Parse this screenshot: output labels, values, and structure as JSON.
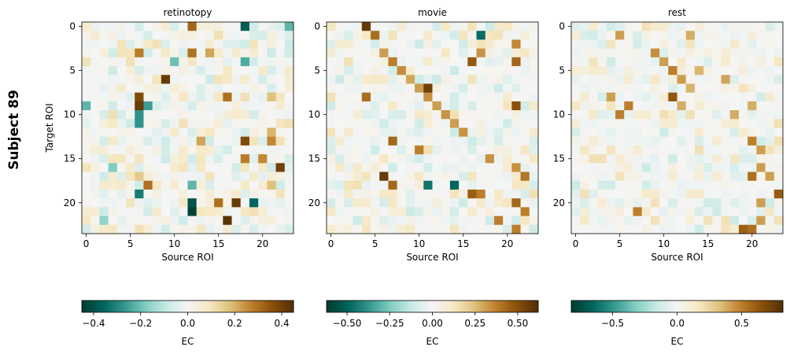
{
  "figure": {
    "row_label": "Subject 89",
    "colormap": [
      "#003c30",
      "#01665e",
      "#35978f",
      "#80cdc1",
      "#c7eae5",
      "#f5f5f5",
      "#f6e8c3",
      "#dfc27d",
      "#bf812d",
      "#8c510a",
      "#543005"
    ]
  },
  "chart_data": [
    {
      "type": "heatmap",
      "title": "retinotopy",
      "xlabel": "Source ROI",
      "ylabel": "Target ROI",
      "n": 24,
      "xticks": [
        0,
        5,
        10,
        15,
        20
      ],
      "yticks": [
        0,
        5,
        10,
        15,
        20
      ],
      "vlim": [
        -0.45,
        0.45
      ],
      "seed": 17,
      "density": 0.55,
      "strong": [
        [
          0,
          12,
          0.32
        ],
        [
          0,
          18,
          -0.38
        ],
        [
          0,
          23,
          -0.22
        ],
        [
          3,
          6,
          0.28
        ],
        [
          3,
          12,
          0.3
        ],
        [
          3,
          14,
          0.22
        ],
        [
          4,
          10,
          -0.2
        ],
        [
          4,
          18,
          -0.24
        ],
        [
          6,
          9,
          0.42
        ],
        [
          8,
          6,
          0.38
        ],
        [
          8,
          16,
          0.3
        ],
        [
          8,
          21,
          0.18
        ],
        [
          9,
          0,
          -0.22
        ],
        [
          9,
          6,
          0.42
        ],
        [
          9,
          7,
          -0.26
        ],
        [
          10,
          6,
          -0.28
        ],
        [
          11,
          6,
          -0.28
        ],
        [
          12,
          21,
          0.2
        ],
        [
          13,
          13,
          0.22
        ],
        [
          13,
          18,
          0.38
        ],
        [
          13,
          21,
          0.26
        ],
        [
          15,
          18,
          0.28
        ],
        [
          15,
          20,
          0.26
        ],
        [
          16,
          22,
          0.4
        ],
        [
          16,
          3,
          -0.18
        ],
        [
          17,
          6,
          0.16
        ],
        [
          18,
          7,
          0.3
        ],
        [
          18,
          12,
          -0.22
        ],
        [
          18,
          21,
          0.18
        ],
        [
          19,
          6,
          -0.32
        ],
        [
          20,
          12,
          -0.4
        ],
        [
          20,
          15,
          0.3
        ],
        [
          20,
          17,
          0.42
        ],
        [
          20,
          19,
          -0.36
        ],
        [
          21,
          12,
          -0.44
        ],
        [
          22,
          16,
          0.44
        ],
        [
          22,
          2,
          -0.16
        ]
      ],
      "cbar_ticks": [
        -0.4,
        -0.2,
        0.0,
        0.2,
        0.4
      ],
      "cbar_ticklabels": [
        "−0.4",
        "−0.2",
        "0.0",
        "0.2",
        "0.4"
      ],
      "cbar_label": "EC"
    },
    {
      "type": "heatmap",
      "title": "movie",
      "xlabel": "Source ROI",
      "ylabel": "",
      "n": 24,
      "xticks": [
        0,
        5,
        10,
        15,
        20
      ],
      "yticks": [
        0,
        5,
        10,
        15,
        20
      ],
      "vlim": [
        -0.62,
        0.62
      ],
      "seed": 29,
      "density": 0.5,
      "strong": [
        [
          0,
          4,
          0.58
        ],
        [
          1,
          5,
          0.42
        ],
        [
          1,
          17,
          -0.48
        ],
        [
          2,
          21,
          0.36
        ],
        [
          3,
          6,
          0.32
        ],
        [
          3,
          17,
          0.34
        ],
        [
          4,
          7,
          0.38
        ],
        [
          4,
          16,
          0.48
        ],
        [
          4,
          21,
          0.44
        ],
        [
          5,
          8,
          0.35
        ],
        [
          6,
          9,
          0.3
        ],
        [
          7,
          10,
          0.32
        ],
        [
          8,
          11,
          0.34
        ],
        [
          8,
          4,
          0.42
        ],
        [
          7,
          11,
          0.56
        ],
        [
          9,
          12,
          0.32
        ],
        [
          9,
          21,
          0.5
        ],
        [
          10,
          13,
          0.34
        ],
        [
          11,
          14,
          0.32
        ],
        [
          12,
          15,
          0.34
        ],
        [
          13,
          7,
          0.44
        ],
        [
          14,
          10,
          0.38
        ],
        [
          15,
          18,
          0.34
        ],
        [
          16,
          21,
          0.34
        ],
        [
          17,
          6,
          0.58
        ],
        [
          17,
          22,
          0.4
        ],
        [
          18,
          7,
          0.44
        ],
        [
          18,
          11,
          -0.46
        ],
        [
          18,
          14,
          -0.5
        ],
        [
          19,
          16,
          0.46
        ],
        [
          19,
          17,
          0.38
        ],
        [
          20,
          21,
          0.44
        ],
        [
          21,
          22,
          0.38
        ],
        [
          22,
          19,
          0.38
        ],
        [
          23,
          21,
          0.38
        ]
      ],
      "cbar_ticks": [
        -0.5,
        -0.25,
        0.0,
        0.25,
        0.5
      ],
      "cbar_ticklabels": [
        "−0.50",
        "−0.25",
        "0.00",
        "0.25",
        "0.50"
      ],
      "cbar_label": "EC"
    },
    {
      "type": "heatmap",
      "title": "rest",
      "xlabel": "Source ROI",
      "ylabel": "",
      "n": 24,
      "xticks": [
        0,
        5,
        10,
        15,
        20
      ],
      "yticks": [
        0,
        5,
        10,
        15,
        20
      ],
      "vlim": [
        -0.82,
        0.82
      ],
      "seed": 43,
      "density": 0.45,
      "strong": [
        [
          1,
          5,
          0.42
        ],
        [
          1,
          13,
          0.38
        ],
        [
          3,
          9,
          0.46
        ],
        [
          4,
          10,
          0.42
        ],
        [
          5,
          11,
          0.5
        ],
        [
          5,
          14,
          0.36
        ],
        [
          6,
          12,
          0.42
        ],
        [
          6,
          17,
          0.4
        ],
        [
          7,
          13,
          0.36
        ],
        [
          8,
          4,
          0.42
        ],
        [
          8,
          11,
          0.64
        ],
        [
          9,
          6,
          0.5
        ],
        [
          9,
          12,
          0.38
        ],
        [
          9,
          20,
          0.38
        ],
        [
          10,
          5,
          0.5
        ],
        [
          10,
          18,
          0.38
        ],
        [
          13,
          20,
          0.5
        ],
        [
          14,
          21,
          0.42
        ],
        [
          16,
          21,
          0.42
        ],
        [
          17,
          20,
          0.55
        ],
        [
          17,
          22,
          0.42
        ],
        [
          19,
          23,
          0.62
        ],
        [
          20,
          21,
          0.42
        ],
        [
          21,
          7,
          0.5
        ],
        [
          22,
          21,
          0.42
        ],
        [
          23,
          19,
          0.6
        ],
        [
          23,
          20,
          0.55
        ]
      ],
      "cbar_ticks": [
        -0.5,
        0.0,
        0.5
      ],
      "cbar_ticklabels": [
        "−0.5",
        "0.0",
        "0.5"
      ],
      "cbar_label": "EC"
    }
  ]
}
